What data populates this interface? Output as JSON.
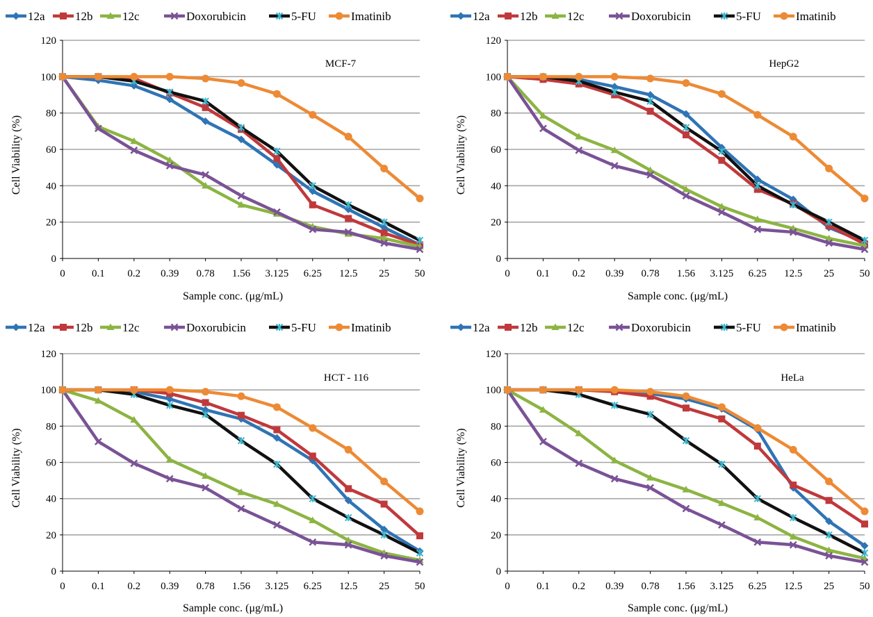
{
  "colors": {
    "12a": "#2f74b5",
    "12b": "#c0393b",
    "12c": "#8cb443",
    "Doxorubicin": "#7a5296",
    "5-FU": "#111111",
    "Imatinib": "#ed8a35",
    "5-FU-marker": "#3cb6cf",
    "grid": "#a6a6a6"
  },
  "chart_data": [
    {
      "type": "line",
      "panel_label": "MCF-7",
      "xlabel": "Sample conc. (μg/mL)",
      "ylabel": "Cell Viability (%)",
      "ylim": [
        0,
        120
      ],
      "yticks": [
        0,
        20,
        40,
        60,
        80,
        100,
        120
      ],
      "categories": [
        "0",
        "0.1",
        "0.2",
        "0.39",
        "0.78",
        "1.56",
        "3.125",
        "6.25",
        "12.5",
        "25",
        "50"
      ],
      "grid": "horizontal",
      "legend_position": "top",
      "series": [
        {
          "name": "12a",
          "values": [
            100,
            98,
            95,
            87.5,
            75.5,
            65.5,
            51.5,
            37,
            27,
            17,
            7.5
          ]
        },
        {
          "name": "12b",
          "values": [
            100,
            100,
            99,
            91,
            83,
            71,
            55,
            29.5,
            22,
            14,
            7.5
          ]
        },
        {
          "name": "12c",
          "values": [
            100,
            72.5,
            64.5,
            54,
            40,
            29.5,
            24.5,
            17.5,
            13.5,
            11,
            6.5
          ]
        },
        {
          "name": "Doxorubicin",
          "values": [
            100,
            71.5,
            59.5,
            51,
            46,
            34.5,
            25.5,
            16,
            14.5,
            8.5,
            5
          ]
        },
        {
          "name": "5-FU",
          "values": [
            100,
            100,
            97.5,
            91.5,
            86.5,
            72,
            59,
            40,
            29.5,
            20,
            10
          ]
        },
        {
          "name": "Imatinib",
          "values": [
            100,
            100,
            100,
            100,
            99,
            96.5,
            90.5,
            79,
            67,
            49.5,
            33
          ]
        }
      ]
    },
    {
      "type": "line",
      "panel_label": "HepG2",
      "xlabel": "Sample conc. (μg/mL)",
      "ylabel": "Cell Viability (%)",
      "ylim": [
        0,
        120
      ],
      "yticks": [
        0,
        20,
        40,
        60,
        80,
        100,
        120
      ],
      "categories": [
        "0",
        "0.1",
        "0.2",
        "0.39",
        "0.78",
        "1.56",
        "3.125",
        "6.25",
        "12.5",
        "25",
        "50"
      ],
      "grid": "horizontal",
      "legend_position": "top",
      "series": [
        {
          "name": "12a",
          "values": [
            100,
            99.5,
            98.5,
            94.5,
            90,
            79.5,
            61,
            43.5,
            32.5,
            17,
            9
          ]
        },
        {
          "name": "12b",
          "values": [
            100,
            98.5,
            96,
            90,
            81,
            68,
            54,
            38,
            30,
            18,
            8
          ]
        },
        {
          "name": "12c",
          "values": [
            100,
            78.5,
            67,
            59.5,
            48.5,
            38,
            28.5,
            21.5,
            16.5,
            11,
            7
          ]
        },
        {
          "name": "Doxorubicin",
          "values": [
            100,
            71.5,
            59.5,
            51,
            46,
            34.5,
            25.5,
            16,
            14.5,
            8.5,
            5
          ]
        },
        {
          "name": "5-FU",
          "values": [
            100,
            100,
            97.5,
            91.5,
            86.5,
            72,
            59,
            40,
            29.5,
            20,
            10
          ]
        },
        {
          "name": "Imatinib",
          "values": [
            100,
            100,
            100,
            100,
            99,
            96.5,
            90.5,
            79,
            67,
            49.5,
            33
          ]
        }
      ]
    },
    {
      "type": "line",
      "panel_label": "HCT - 116",
      "xlabel": "Sample conc. (μg/mL)",
      "ylabel": "Cell Viability (%)",
      "ylim": [
        0,
        120
      ],
      "yticks": [
        0,
        20,
        40,
        60,
        80,
        100,
        120
      ],
      "categories": [
        "0",
        "0.1",
        "0.2",
        "0.39",
        "0.78",
        "1.56",
        "3.125",
        "6.25",
        "12.5",
        "25",
        "50"
      ],
      "grid": "horizontal",
      "legend_position": "top",
      "series": [
        {
          "name": "12a",
          "values": [
            100,
            100,
            99,
            95,
            89,
            84,
            73.5,
            61,
            39,
            23,
            11
          ]
        },
        {
          "name": "12b",
          "values": [
            100,
            100,
            100,
            98,
            93,
            86,
            78,
            63.5,
            45.5,
            37,
            19.5
          ]
        },
        {
          "name": "12c",
          "values": [
            100,
            94,
            83.5,
            61.5,
            52.5,
            43.5,
            37,
            28,
            17,
            10,
            6
          ]
        },
        {
          "name": "Doxorubicin",
          "values": [
            100,
            71.5,
            59.5,
            51,
            46,
            34.5,
            25.5,
            16,
            14.5,
            8.5,
            5
          ]
        },
        {
          "name": "5-FU",
          "values": [
            100,
            100,
            97.5,
            91.5,
            86.5,
            72,
            59,
            40,
            29.5,
            20,
            10
          ]
        },
        {
          "name": "Imatinib",
          "values": [
            100,
            100,
            100,
            100,
            99,
            96.5,
            90.5,
            79,
            67,
            49.5,
            33
          ]
        }
      ]
    },
    {
      "type": "line",
      "panel_label": "HeLa",
      "xlabel": "Sample conc. (μg/mL)",
      "ylabel": "Cell Viability (%)",
      "ylim": [
        0,
        120
      ],
      "yticks": [
        0,
        20,
        40,
        60,
        80,
        100,
        120
      ],
      "categories": [
        "0",
        "0.1",
        "0.2",
        "0.39",
        "0.78",
        "1.56",
        "3.125",
        "6.25",
        "12.5",
        "25",
        "50"
      ],
      "grid": "horizontal",
      "legend_position": "top",
      "series": [
        {
          "name": "12a",
          "values": [
            100,
            100,
            100,
            99.5,
            98,
            95,
            89.5,
            78,
            46,
            27.5,
            14
          ]
        },
        {
          "name": "12b",
          "values": [
            100,
            100,
            100,
            99,
            96.5,
            90,
            84,
            69,
            47.5,
            39,
            26
          ]
        },
        {
          "name": "12c",
          "values": [
            100,
            89,
            76,
            61,
            51.5,
            45,
            37.5,
            29.5,
            19,
            11.5,
            7
          ]
        },
        {
          "name": "Doxorubicin",
          "values": [
            100,
            71.5,
            59.5,
            51,
            46,
            34.5,
            25.5,
            16,
            14.5,
            8.5,
            5
          ]
        },
        {
          "name": "5-FU",
          "values": [
            100,
            100,
            97.5,
            91.5,
            86.5,
            72,
            59,
            40,
            29.5,
            20,
            10
          ]
        },
        {
          "name": "Imatinib",
          "values": [
            100,
            100,
            100,
            100,
            99,
            96.5,
            90.5,
            79,
            67,
            49.5,
            33
          ]
        }
      ]
    }
  ]
}
